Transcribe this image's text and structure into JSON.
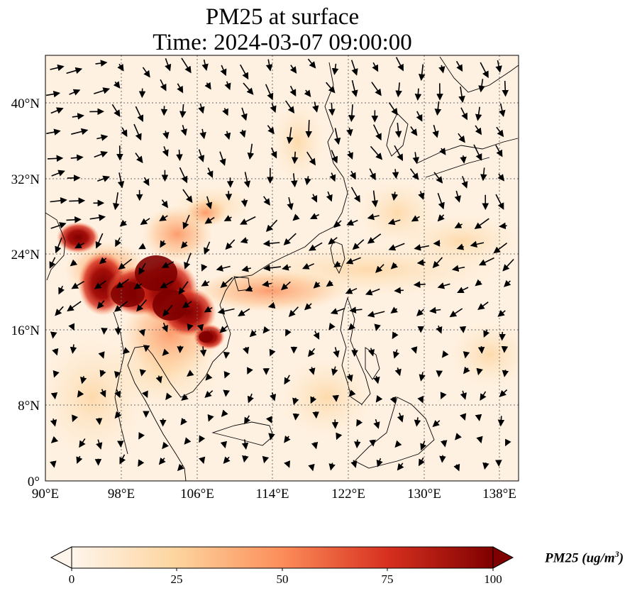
{
  "title": {
    "line1": "PM25 at surface",
    "line2": "Time: 2024-03-07 09:00:00"
  },
  "map": {
    "lon_range": [
      90,
      140
    ],
    "lat_range": [
      0,
      45
    ],
    "lon_ticks": [
      "90°E",
      "98°E",
      "106°E",
      "114°E",
      "122°E",
      "130°E",
      "138°E"
    ],
    "lat_ticks": [
      "0°",
      "8°N",
      "16°N",
      "24°N",
      "32°N",
      "40°N"
    ],
    "field": "PM25",
    "high_concentration_region": "Myanmar / northern Thailand / Laos",
    "wind_vectors": true,
    "coastlines": true,
    "gridlines": "dotted"
  },
  "colorbar": {
    "label_main": "PM25 (ug/m",
    "label_sup": "3",
    "label_end": ")",
    "ticks": [
      "0",
      "25",
      "50",
      "75",
      "100"
    ],
    "range": [
      0,
      100
    ],
    "colormap": "OrRd",
    "colors": [
      "#fff5eb",
      "#fdd49e",
      "#fc8d59",
      "#d7301f",
      "#7f0000"
    ],
    "extend": "both"
  }
}
